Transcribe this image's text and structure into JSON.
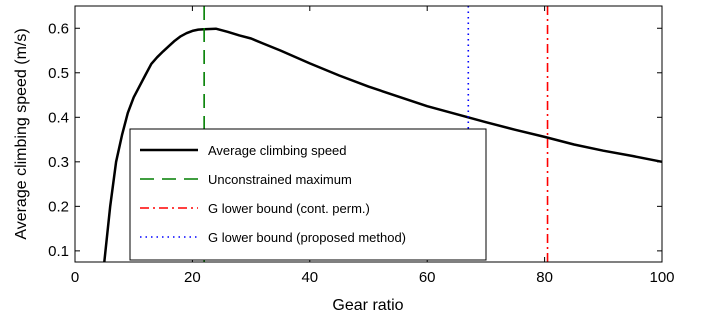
{
  "chart_data": {
    "type": "line",
    "title": "",
    "xlabel": "Gear ratio",
    "ylabel": "Average climbing speed (m/s)",
    "xlim": [
      0,
      100
    ],
    "ylim": [
      0.075,
      0.65
    ],
    "xticks": [
      0,
      20,
      40,
      60,
      80,
      100
    ],
    "yticks": [
      0.1,
      0.2,
      0.3,
      0.4,
      0.5,
      0.6
    ],
    "grid": false,
    "legend_position": "lower-left",
    "series": [
      {
        "name": "Average climbing speed",
        "style": "solid",
        "color": "#000000",
        "x": [
          5,
          6,
          7,
          8,
          9,
          10,
          11,
          12,
          13,
          14,
          15,
          16,
          17,
          18,
          19,
          20,
          21,
          22,
          24,
          26,
          28,
          30,
          32,
          35,
          40,
          45,
          50,
          55,
          60,
          65,
          70,
          75,
          80,
          85,
          90,
          95,
          100
        ],
        "y": [
          0.075,
          0.2,
          0.3,
          0.36,
          0.41,
          0.445,
          0.47,
          0.495,
          0.52,
          0.535,
          0.548,
          0.56,
          0.572,
          0.582,
          0.589,
          0.594,
          0.597,
          0.598,
          0.599,
          0.592,
          0.584,
          0.577,
          0.566,
          0.55,
          0.521,
          0.494,
          0.469,
          0.447,
          0.425,
          0.407,
          0.389,
          0.372,
          0.356,
          0.339,
          0.325,
          0.313,
          0.3
        ]
      },
      {
        "name": "Unconstrained maximum",
        "style": "dashed",
        "color": "#007f00",
        "vline_x": 22
      },
      {
        "name": "G lower bound (cont. perm.)",
        "style": "dashdot",
        "color": "#ff0000",
        "vline_x": 80.5
      },
      {
        "name": "G lower bound (proposed method)",
        "style": "dotted",
        "color": "#0000ff",
        "vline_x": 67
      }
    ]
  }
}
